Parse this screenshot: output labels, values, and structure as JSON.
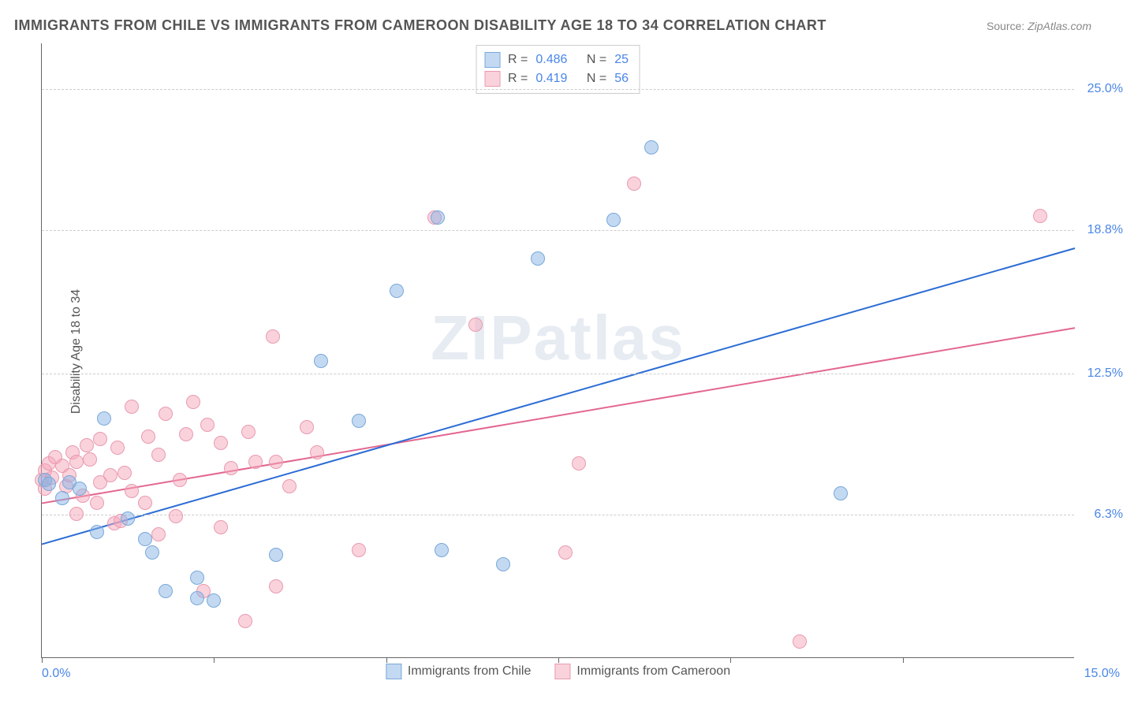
{
  "title": "IMMIGRANTS FROM CHILE VS IMMIGRANTS FROM CAMEROON DISABILITY AGE 18 TO 34 CORRELATION CHART",
  "source_label": "Source:",
  "source_value": "ZipAtlas.com",
  "ylabel": "Disability Age 18 to 34",
  "watermark": "ZIPatlas",
  "chart": {
    "type": "scatter",
    "background_color": "#ffffff",
    "grid_color": "#cccccc",
    "axis_color": "#666666",
    "tick_label_color": "#4a86e8",
    "marker_radius": 9,
    "marker_border_width": 1.5,
    "line_width": 2,
    "xlim": [
      0,
      15
    ],
    "ylim": [
      0,
      27
    ],
    "xtick_positions": [
      0,
      2.5,
      5,
      7.5,
      10,
      12.5
    ],
    "xtick_labels": {
      "min": "0.0%",
      "max": "15.0%"
    },
    "ytick_positions": [
      6.3,
      12.5,
      18.8,
      25.0
    ],
    "ytick_labels": [
      "6.3%",
      "12.5%",
      "18.8%",
      "25.0%"
    ]
  },
  "series": {
    "chile": {
      "label": "Immigrants from Chile",
      "fill_color": "rgba(135,180,230,0.5)",
      "border_color": "#7aa8d8",
      "line_color": "#2b6cd4",
      "R_label": "R =",
      "R": "0.486",
      "N_label": "N =",
      "N": "25",
      "trend": {
        "x1": 0,
        "y1": 5.0,
        "x2": 15,
        "y2": 18.0
      },
      "points": [
        [
          0.05,
          7.8
        ],
        [
          0.1,
          7.6
        ],
        [
          0.3,
          7.0
        ],
        [
          0.4,
          7.7
        ],
        [
          0.55,
          7.4
        ],
        [
          0.8,
          5.5
        ],
        [
          0.9,
          10.5
        ],
        [
          1.25,
          6.1
        ],
        [
          1.5,
          5.2
        ],
        [
          1.6,
          4.6
        ],
        [
          1.8,
          2.9
        ],
        [
          2.25,
          2.6
        ],
        [
          2.25,
          3.5
        ],
        [
          2.5,
          2.5
        ],
        [
          3.4,
          4.5
        ],
        [
          4.05,
          13.0
        ],
        [
          4.6,
          10.4
        ],
        [
          5.15,
          16.1
        ],
        [
          5.75,
          19.3
        ],
        [
          5.8,
          4.7
        ],
        [
          6.7,
          4.1
        ],
        [
          7.2,
          17.5
        ],
        [
          8.85,
          22.4
        ],
        [
          8.3,
          19.2
        ],
        [
          11.6,
          7.2
        ]
      ]
    },
    "cameroon": {
      "label": "Immigrants from Cameroon",
      "fill_color": "rgba(245,165,185,0.5)",
      "border_color": "#e89bb0",
      "line_color": "#e36790",
      "R_label": "R =",
      "R": "0.419",
      "N_label": "N =",
      "N": "56",
      "trend": {
        "x1": 0,
        "y1": 6.8,
        "x2": 15,
        "y2": 14.5
      },
      "points": [
        [
          0.0,
          7.8
        ],
        [
          0.05,
          8.2
        ],
        [
          0.05,
          7.4
        ],
        [
          0.1,
          8.5
        ],
        [
          0.15,
          7.9
        ],
        [
          0.2,
          8.8
        ],
        [
          0.3,
          8.4
        ],
        [
          0.35,
          7.5
        ],
        [
          0.4,
          8.0
        ],
        [
          0.45,
          9.0
        ],
        [
          0.5,
          6.3
        ],
        [
          0.5,
          8.6
        ],
        [
          0.6,
          7.1
        ],
        [
          0.65,
          9.3
        ],
        [
          0.7,
          8.7
        ],
        [
          0.8,
          6.8
        ],
        [
          0.85,
          9.6
        ],
        [
          0.85,
          7.7
        ],
        [
          1.0,
          8.0
        ],
        [
          1.05,
          5.9
        ],
        [
          1.1,
          9.2
        ],
        [
          1.15,
          6.0
        ],
        [
          1.2,
          8.1
        ],
        [
          1.3,
          7.3
        ],
        [
          1.3,
          11.0
        ],
        [
          1.5,
          6.8
        ],
        [
          1.55,
          9.7
        ],
        [
          1.7,
          5.4
        ],
        [
          1.7,
          8.9
        ],
        [
          1.8,
          10.7
        ],
        [
          1.95,
          6.2
        ],
        [
          2.0,
          7.8
        ],
        [
          2.1,
          9.8
        ],
        [
          2.2,
          11.2
        ],
        [
          2.35,
          2.9
        ],
        [
          2.4,
          10.2
        ],
        [
          2.6,
          5.7
        ],
        [
          2.6,
          9.4
        ],
        [
          2.75,
          8.3
        ],
        [
          2.95,
          1.6
        ],
        [
          3.0,
          9.9
        ],
        [
          3.1,
          8.6
        ],
        [
          3.35,
          14.1
        ],
        [
          3.4,
          3.1
        ],
        [
          3.4,
          8.6
        ],
        [
          3.85,
          10.1
        ],
        [
          4.0,
          9.0
        ],
        [
          4.6,
          4.7
        ],
        [
          5.7,
          19.3
        ],
        [
          6.3,
          14.6
        ],
        [
          7.6,
          4.6
        ],
        [
          7.8,
          8.5
        ],
        [
          8.6,
          20.8
        ],
        [
          11.0,
          0.7
        ],
        [
          14.5,
          19.4
        ],
        [
          3.6,
          7.5
        ]
      ]
    }
  }
}
